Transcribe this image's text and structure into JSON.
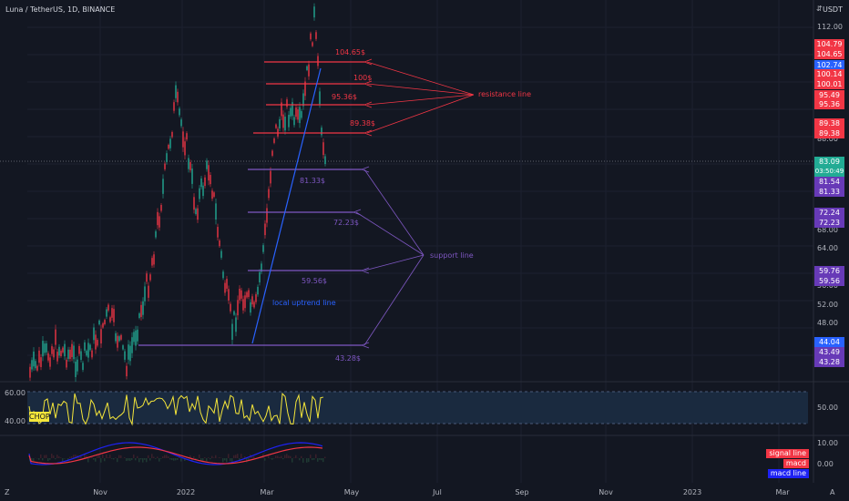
{
  "header": {
    "symbol": "Luna / TetherUS, 1D, BINANCE",
    "currency": "USDT"
  },
  "price_axis": [
    "112.00",
    "88.00",
    "68.00",
    "64.00",
    "56.00",
    "52.00",
    "48.00"
  ],
  "price_tags": [
    {
      "label": "104.79",
      "color": "#f23645"
    },
    {
      "label": "104.65",
      "color": "#f23645"
    },
    {
      "label": "102.74",
      "color": "#2962ff"
    },
    {
      "label": "100.14",
      "color": "#f23645"
    },
    {
      "label": "100.01",
      "color": "#f23645"
    },
    {
      "label": "95.49",
      "color": "#f23645"
    },
    {
      "label": "95.36",
      "color": "#f23645"
    },
    {
      "label": "89.38",
      "color": "#f23645"
    },
    {
      "label": "89.38",
      "color": "#f23645"
    },
    {
      "label": "83.09",
      "color": "#22ab94"
    },
    {
      "label": "03:50:49",
      "color": "#22ab94"
    },
    {
      "label": "81.54",
      "color": "#673ab7"
    },
    {
      "label": "81.33",
      "color": "#673ab7"
    },
    {
      "label": "72.24",
      "color": "#673ab7"
    },
    {
      "label": "72.23",
      "color": "#673ab7"
    },
    {
      "label": "59.76",
      "color": "#673ab7"
    },
    {
      "label": "59.56",
      "color": "#673ab7"
    },
    {
      "label": "44.04",
      "color": "#2962ff"
    },
    {
      "label": "43.49",
      "color": "#673ab7"
    },
    {
      "label": "43.28",
      "color": "#673ab7"
    }
  ],
  "annotations": {
    "resistance": [
      "104.65$",
      "100$",
      "95.36$",
      "89.38$"
    ],
    "resistance_label": "resistance line",
    "support": [
      "81.33$",
      "72.23$",
      "59.56$",
      "43.28$"
    ],
    "support_label": "support line",
    "uptrend_label": "local uptrend line"
  },
  "chop": {
    "name": "CHOP",
    "upper": "60.00",
    "lower": "40.00",
    "axis": "50.00"
  },
  "macd": {
    "axis_top": "10.00",
    "axis_mid": "0.00",
    "legend": [
      {
        "label": "signal line",
        "color": "#f23645"
      },
      {
        "label": "macd",
        "color": "#f23645"
      },
      {
        "label": "macd line",
        "color": "#1e22f5"
      }
    ]
  },
  "time_axis": [
    "Nov",
    "2022",
    "Mar",
    "May",
    "Jul",
    "Sep",
    "Nov",
    "2023",
    "Mar"
  ],
  "corner": {
    "left": "Z",
    "right": "A"
  },
  "colors": {
    "bg": "#131722",
    "resistance": "#f23645",
    "support": "#7e57c2",
    "uptrend": "#2962ff",
    "chop": "#f5e63a",
    "grid": "#1f2433",
    "candle_up": "#22ab94",
    "candle_down": "#f23645"
  }
}
